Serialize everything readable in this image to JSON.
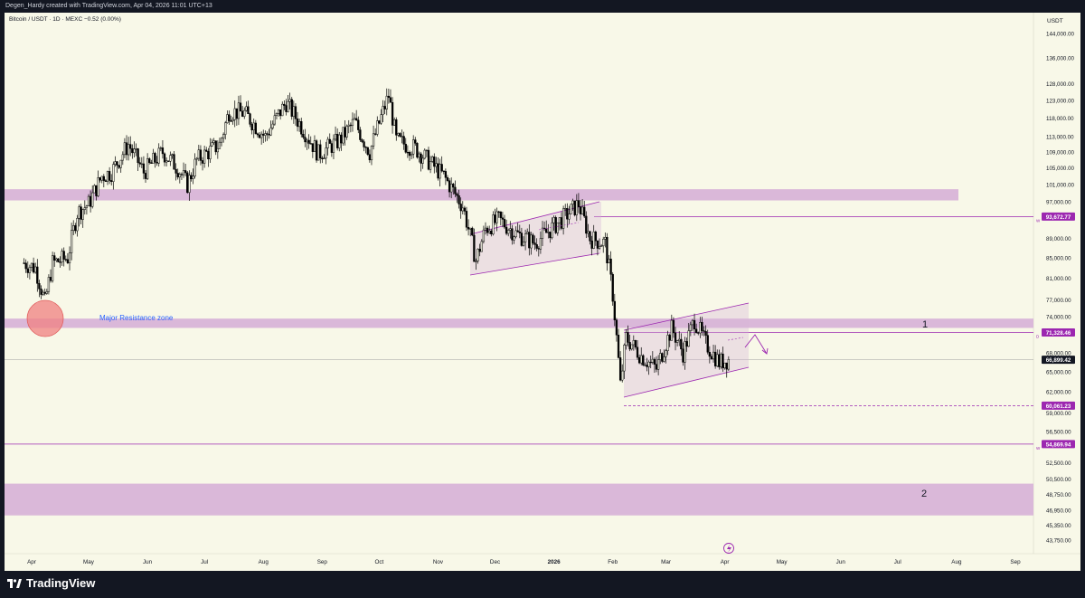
{
  "header": {
    "credit": "Degen_Hardy created with TradingView.com, Apr 04, 2026 11:01 UTC+13"
  },
  "symbol_line": "Bitcoin / USDT · 1D · MEXC  −0.52 (0.00%)",
  "currency": "USDT",
  "brand": "TradingView",
  "colors": {
    "background": "#f8f8e8",
    "zone": "#d8b4d8",
    "line": "#9c27b0",
    "candle": "#000000",
    "price_tag": "#9c27b0",
    "circle": "#f08080",
    "annotation": "#2962ff"
  },
  "annotations": {
    "major_resistance": "Major Resistance zone",
    "label_1": "1",
    "label_2": "2"
  },
  "price_tags": [
    {
      "value": 93672.77,
      "text": "93,672.77",
      "suffix": "W"
    },
    {
      "value": 71328.46,
      "text": "71,328.46",
      "suffix": "D"
    },
    {
      "value": 66899.42,
      "text": "66,899.42",
      "suffix": ""
    },
    {
      "value": 60061.23,
      "text": "60,061.23",
      "suffix": ""
    },
    {
      "value": 54869.94,
      "text": "54,869.94",
      "suffix": "W"
    }
  ],
  "chart_data": {
    "type": "candlestick",
    "x_axis_labels": [
      "Apr",
      "May",
      "Jun",
      "Jul",
      "Aug",
      "Sep",
      "Oct",
      "Nov",
      "Dec",
      "2026",
      "Feb",
      "Mar",
      "Apr",
      "May",
      "Jun",
      "Jul",
      "Aug",
      "Sep"
    ],
    "y_axis_labels": [
      "144,000.00",
      "136,000.00",
      "128,000.00",
      "123,000.00",
      "118,000.00",
      "113,000.00",
      "109,000.00",
      "105,000.00",
      "101,000.00",
      "97,000.00",
      "89,000.00",
      "85,000.00",
      "81,000.00",
      "77,000.00",
      "74,000.00",
      "68,000.00",
      "65,000.00",
      "62,000.00",
      "59,000.00",
      "56,500.00",
      "52,500.00",
      "50,500.00",
      "48,750.00",
      "46,950.00",
      "45,350.00",
      "43,750.00"
    ],
    "y_scale": "log",
    "close_path": [
      [
        "2025-03-28",
        84000
      ],
      [
        "2025-04-03",
        83000
      ],
      [
        "2025-04-08",
        76500
      ],
      [
        "2025-04-12",
        84000
      ],
      [
        "2025-04-20",
        85000
      ],
      [
        "2025-04-25",
        94500
      ],
      [
        "2025-05-01",
        96500
      ],
      [
        "2025-05-08",
        103000
      ],
      [
        "2025-05-13",
        104000
      ],
      [
        "2025-05-22",
        111000
      ],
      [
        "2025-05-30",
        104000
      ],
      [
        "2025-06-09",
        109000
      ],
      [
        "2025-06-17",
        105000
      ],
      [
        "2025-06-22",
        101000
      ],
      [
        "2025-06-27",
        107000
      ],
      [
        "2025-07-09",
        111000
      ],
      [
        "2025-07-14",
        120000
      ],
      [
        "2025-07-22",
        119500
      ],
      [
        "2025-08-02",
        113000
      ],
      [
        "2025-08-13",
        122500
      ],
      [
        "2025-08-22",
        115000
      ],
      [
        "2025-08-30",
        108500
      ],
      [
        "2025-09-10",
        112000
      ],
      [
        "2025-09-18",
        117000
      ],
      [
        "2025-09-26",
        109000
      ],
      [
        "2025-10-06",
        124500
      ],
      [
        "2025-10-10",
        112000
      ],
      [
        "2025-10-20",
        110000
      ],
      [
        "2025-11-04",
        103000
      ],
      [
        "2025-11-14",
        96000
      ],
      [
        "2025-11-21",
        84500
      ],
      [
        "2025-11-26",
        91000
      ],
      [
        "2025-12-03",
        93000
      ],
      [
        "2025-12-12",
        90000
      ],
      [
        "2025-12-22",
        88000
      ],
      [
        "2026-01-05",
        93000
      ],
      [
        "2026-01-14",
        96500
      ],
      [
        "2026-01-20",
        89000
      ],
      [
        "2026-01-28",
        88000
      ],
      [
        "2026-02-01",
        78000
      ],
      [
        "2026-02-05",
        63000
      ],
      [
        "2026-02-08",
        70500
      ],
      [
        "2026-02-16",
        67500
      ],
      [
        "2026-02-24",
        65500
      ],
      [
        "2026-03-04",
        72000
      ],
      [
        "2026-03-10",
        68000
      ],
      [
        "2026-03-16",
        73500
      ],
      [
        "2026-03-22",
        69500
      ],
      [
        "2026-03-29",
        66500
      ],
      [
        "2026-04-03",
        66899
      ]
    ],
    "zones": [
      {
        "from": 97300,
        "to": 99900,
        "label": ""
      },
      {
        "from": 72100,
        "to": 73700,
        "label": "Major Resistance zone"
      },
      {
        "from": 46400,
        "to": 50000,
        "label": "2"
      }
    ],
    "horizontal_levels": [
      93672.77,
      71328.46,
      66899.42,
      60061.23,
      54869.94
    ]
  }
}
